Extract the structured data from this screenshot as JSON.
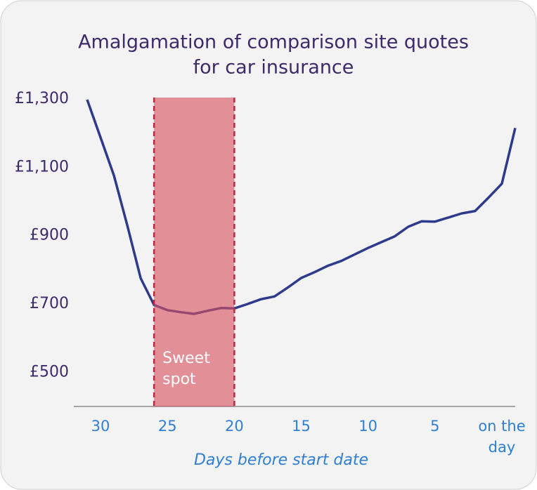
{
  "chart_data": {
    "type": "line",
    "title": [
      "Amalgamation of comparison site quotes",
      "for car insurance"
    ],
    "xlabel": "Days before start date",
    "x": [
      31,
      30,
      29,
      28,
      27,
      26,
      25,
      24,
      23,
      22,
      21,
      20,
      19,
      18,
      17,
      16,
      15,
      14,
      13,
      12,
      11,
      10,
      9,
      8,
      7,
      6,
      5,
      4,
      3,
      2,
      1,
      0,
      -1
    ],
    "values": [
      1298,
      1187,
      1076,
      930,
      775,
      697,
      682,
      676,
      671,
      680,
      688,
      687,
      700,
      714,
      722,
      748,
      776,
      793,
      812,
      826,
      845,
      864,
      881,
      898,
      926,
      942,
      941,
      953,
      965,
      972,
      1011,
      1052,
      1215
    ],
    "color": "#2e3a8c",
    "xlim": [
      32,
      -1
    ],
    "xticks": [
      30,
      25,
      20,
      15,
      10,
      5,
      {
        "value": 0,
        "label": "on the day"
      }
    ],
    "ylim": [
      400,
      1300
    ],
    "yticks": [
      {
        "value": 500,
        "label": "£500"
      },
      {
        "value": 700,
        "label": "£700"
      },
      {
        "value": 900,
        "label": "£900"
      },
      {
        "value": 1100,
        "label": "£1,100"
      },
      {
        "value": 1300,
        "label": "£1,300"
      }
    ],
    "annotation": {
      "text": [
        "Sweet",
        "spot"
      ],
      "x_range": [
        26,
        20
      ],
      "color": "#d9505f"
    }
  }
}
